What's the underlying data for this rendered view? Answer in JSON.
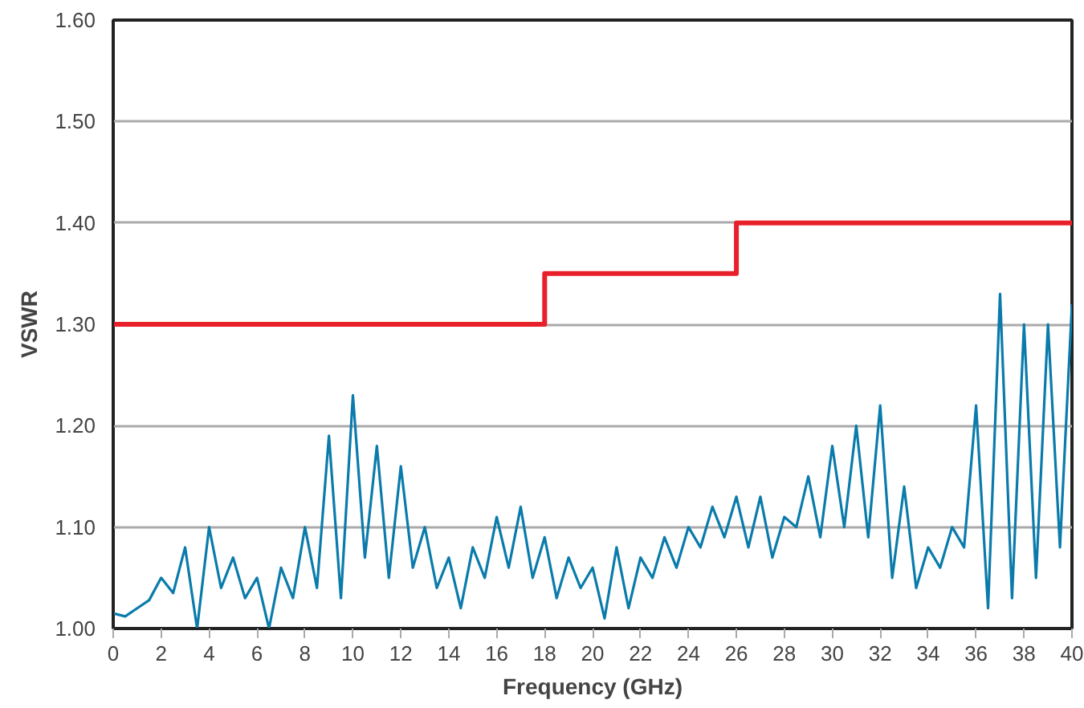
{
  "chart_data": {
    "type": "line",
    "xlabel": "Frequency (GHz)",
    "ylabel": "VSWR",
    "xlim": [
      0,
      40
    ],
    "xticks": [
      0,
      2,
      4,
      6,
      8,
      10,
      12,
      14,
      16,
      18,
      20,
      22,
      24,
      26,
      28,
      30,
      32,
      34,
      36,
      38,
      40
    ],
    "ylim": [
      1.0,
      1.6
    ],
    "yticks": [
      {
        "value": 1.0,
        "label": "1.00"
      },
      {
        "value": 1.1,
        "label": "1.10"
      },
      {
        "value": 1.2,
        "label": "1.20"
      },
      {
        "value": 1.3,
        "label": "1.30"
      },
      {
        "value": 1.4,
        "label": "1.40"
      },
      {
        "value": 1.5,
        "label": "1.50"
      },
      {
        "value": 1.6,
        "label": "1.60"
      }
    ],
    "grid": "y",
    "series": [
      {
        "color": "#0a7bab",
        "x": [
          0,
          0.5,
          1,
          1.5,
          2,
          2.5,
          3,
          3.5,
          4,
          4.5,
          5,
          5.5,
          6,
          6.5,
          7,
          7.5,
          8,
          8.5,
          9,
          9.5,
          10,
          10.5,
          11,
          11.5,
          12,
          12.5,
          13,
          13.5,
          14,
          14.5,
          15,
          15.5,
          16,
          16.5,
          17,
          17.5,
          18,
          18.5,
          19,
          19.5,
          20,
          20.5,
          21,
          21.5,
          22,
          22.5,
          23,
          23.5,
          24,
          24.5,
          25,
          25.5,
          26,
          26.5,
          27,
          27.5,
          28,
          28.5,
          29,
          29.5,
          30,
          30.5,
          31,
          31.5,
          32,
          32.5,
          33,
          33.5,
          34,
          34.5,
          35,
          35.5,
          36,
          36.5,
          37,
          37.5,
          38,
          38.5,
          39,
          39.5,
          40
        ],
        "values": [
          1.015,
          1.012,
          1.02,
          1.028,
          1.05,
          1.035,
          1.08,
          1.0,
          1.1,
          1.04,
          1.07,
          1.03,
          1.05,
          1.0,
          1.06,
          1.03,
          1.1,
          1.04,
          1.19,
          1.03,
          1.23,
          1.07,
          1.18,
          1.05,
          1.16,
          1.06,
          1.1,
          1.04,
          1.07,
          1.02,
          1.08,
          1.05,
          1.11,
          1.06,
          1.12,
          1.05,
          1.09,
          1.03,
          1.07,
          1.04,
          1.06,
          1.01,
          1.08,
          1.02,
          1.07,
          1.05,
          1.09,
          1.06,
          1.1,
          1.08,
          1.12,
          1.09,
          1.13,
          1.08,
          1.13,
          1.07,
          1.11,
          1.1,
          1.15,
          1.09,
          1.18,
          1.1,
          1.2,
          1.09,
          1.22,
          1.05,
          1.14,
          1.04,
          1.08,
          1.06,
          1.1,
          1.08,
          1.22,
          1.02,
          1.33,
          1.03,
          1.3,
          1.05,
          1.3,
          1.08,
          1.32
        ]
      },
      {
        "type": "line",
        "color": "#e8202a",
        "x": [
          0,
          18,
          18,
          26,
          26,
          40
        ],
        "values": [
          1.3,
          1.3,
          1.35,
          1.35,
          1.4,
          1.4
        ]
      }
    ]
  }
}
